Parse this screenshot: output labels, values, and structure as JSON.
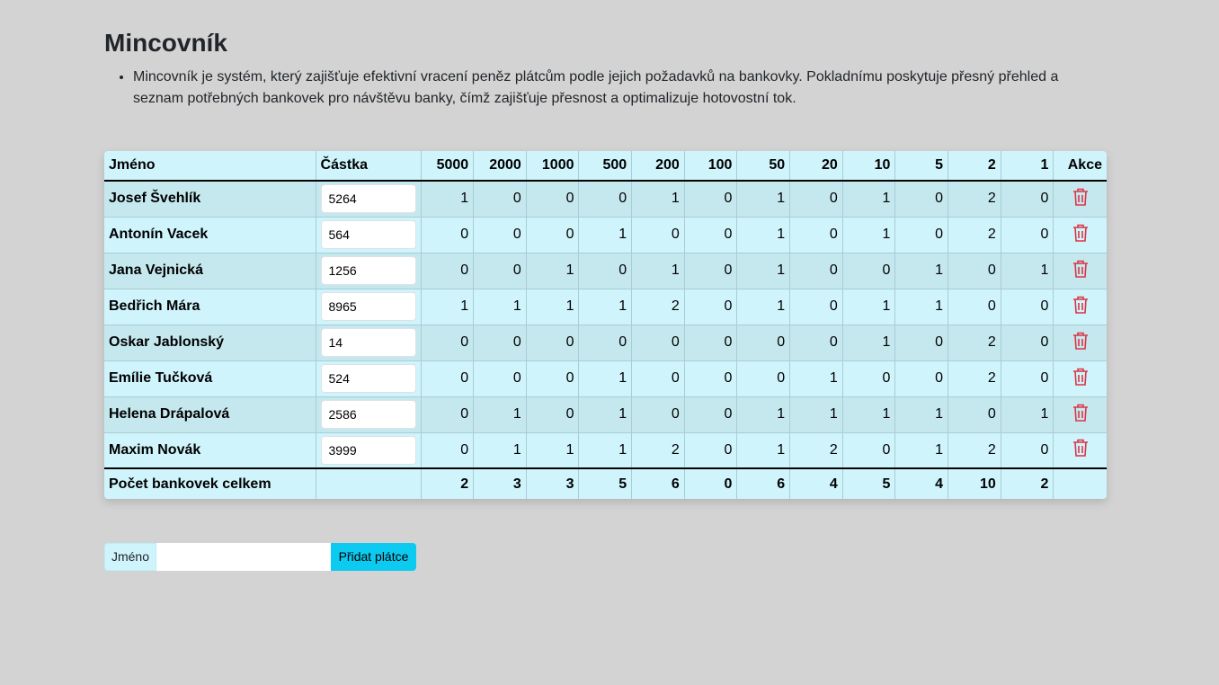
{
  "header": {
    "title": "Mincovník",
    "description": "Mincovník je systém, který zajišťuje efektivní vracení peněz plátcům podle jejich požadavků na bankovky. Pokladnímu poskytuje přesný přehled a seznam potřebných bankovek pro návštěvu banky, čímž zajišťuje přesnost a optimalizuje hotovostní tok."
  },
  "table": {
    "columns": [
      "Jméno",
      "Částka",
      "5000",
      "2000",
      "1000",
      "500",
      "200",
      "100",
      "50",
      "20",
      "10",
      "5",
      "2",
      "1",
      "Akce"
    ],
    "rows": [
      {
        "name": "Josef Švehlík",
        "amount": "5264",
        "counts": [
          1,
          0,
          0,
          0,
          1,
          0,
          1,
          0,
          1,
          0,
          2,
          0
        ]
      },
      {
        "name": "Antonín Vacek",
        "amount": "564",
        "counts": [
          0,
          0,
          0,
          1,
          0,
          0,
          1,
          0,
          1,
          0,
          2,
          0
        ]
      },
      {
        "name": "Jana Vejnická",
        "amount": "1256",
        "counts": [
          0,
          0,
          1,
          0,
          1,
          0,
          1,
          0,
          0,
          1,
          0,
          1
        ]
      },
      {
        "name": "Bedřich Mára",
        "amount": "8965",
        "counts": [
          1,
          1,
          1,
          1,
          2,
          0,
          1,
          0,
          1,
          1,
          0,
          0
        ]
      },
      {
        "name": "Oskar Jablonský",
        "amount": "14",
        "counts": [
          0,
          0,
          0,
          0,
          0,
          0,
          0,
          0,
          1,
          0,
          2,
          0
        ]
      },
      {
        "name": "Emílie Tučková",
        "amount": "524",
        "counts": [
          0,
          0,
          0,
          1,
          0,
          0,
          0,
          1,
          0,
          0,
          2,
          0
        ]
      },
      {
        "name": "Helena Drápalová",
        "amount": "2586",
        "counts": [
          0,
          1,
          0,
          1,
          0,
          0,
          1,
          1,
          1,
          1,
          0,
          1
        ]
      },
      {
        "name": "Maxim Novák",
        "amount": "3999",
        "counts": [
          0,
          1,
          1,
          1,
          2,
          0,
          1,
          2,
          0,
          1,
          2,
          0
        ]
      }
    ],
    "total": {
      "label": "Počet bankovek celkem",
      "counts": [
        2,
        3,
        3,
        5,
        6,
        0,
        6,
        4,
        5,
        4,
        10,
        2
      ]
    }
  },
  "form": {
    "label": "Jméno",
    "button": "Přidat plátce"
  }
}
